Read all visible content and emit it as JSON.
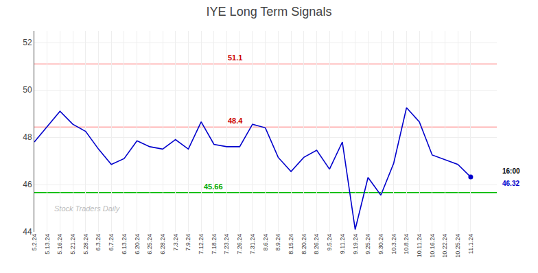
{
  "chart_data": {
    "type": "line",
    "title": "IYE Long Term Signals",
    "categories": [
      "5.2.24",
      "5.13.24",
      "5.16.24",
      "5.21.24",
      "5.28.24",
      "6.3.24",
      "6.7.24",
      "6.13.24",
      "6.20.24",
      "6.25.24",
      "6.28.24",
      "7.3.24",
      "7.9.24",
      "7.12.24",
      "7.18.24",
      "7.23.24",
      "7.26.24",
      "7.31.24",
      "8.6.24",
      "8.9.24",
      "8.15.24",
      "8.20.24",
      "8.26.24",
      "9.5.24",
      "9.11.24",
      "9.19.24",
      "9.25.24",
      "9.30.24",
      "10.3.24",
      "10.8.24",
      "10.11.24",
      "10.16.24",
      "10.22.24",
      "10.25.24",
      "11.1.24"
    ],
    "values": [
      47.8,
      48.45,
      49.1,
      48.55,
      48.25,
      47.5,
      46.85,
      47.1,
      47.85,
      47.6,
      47.5,
      47.9,
      47.5,
      48.65,
      47.7,
      47.6,
      47.6,
      48.55,
      48.4,
      47.15,
      46.55,
      47.15,
      47.45,
      46.65,
      47.8,
      44.1,
      46.3,
      45.55,
      46.9,
      49.25,
      48.65,
      47.25,
      47.05,
      46.85,
      46.32
    ],
    "color": "#0000cc",
    "ylim": [
      44,
      52.5
    ],
    "yticks": [
      44,
      46,
      48,
      50,
      52
    ],
    "grid": true,
    "reference_lines": [
      {
        "value": 51.1,
        "label": "51.1",
        "color": "#ffaaaa",
        "label_color": "#cc0000"
      },
      {
        "value": 48.43,
        "label": "48.4",
        "color": "#ffaaaa",
        "label_color": "#cc0000"
      },
      {
        "value": 45.66,
        "label": "45.66",
        "color": "#00bb00",
        "label_color": "#00aa00"
      }
    ],
    "end_labels": [
      "16:00",
      "46.32"
    ],
    "watermark": "Stock Traders Daily"
  }
}
